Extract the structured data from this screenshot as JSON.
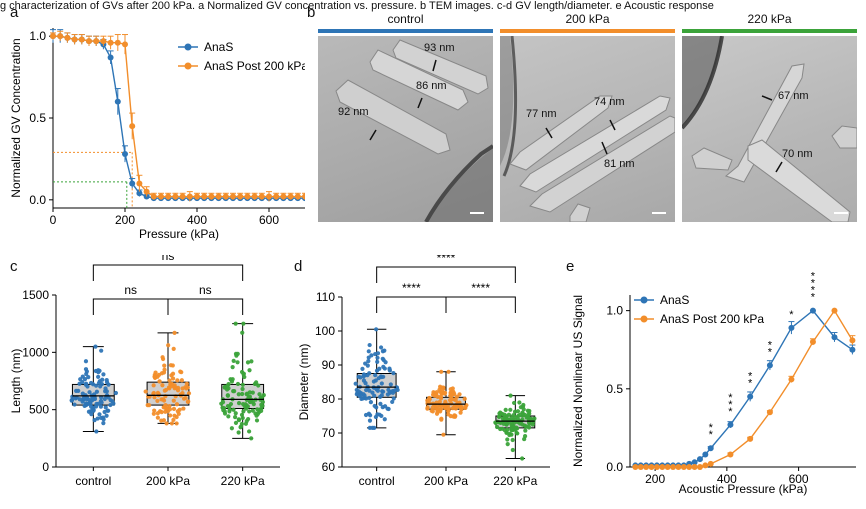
{
  "caption": "g characterization of GVs after 200 kPa. a Normalized GV concentration vs. pressure. b TEM images. c-d GV length/diameter. e Acoustic response",
  "panel_labels": {
    "a": "a",
    "b": "b",
    "c": "c",
    "d": "d",
    "e": "e"
  },
  "tem": {
    "titles": [
      "control",
      "200 kPa",
      "220 kPa"
    ],
    "colors": [
      "#2E75B6",
      "#F28E2B",
      "#3BA33A"
    ],
    "panels": [
      {
        "measures": [
          {
            "label": "93 nm"
          },
          {
            "label": "86 nm"
          },
          {
            "label": "92 nm"
          }
        ]
      },
      {
        "measures": [
          {
            "label": "77 nm"
          },
          {
            "label": "74 nm"
          },
          {
            "label": "81 nm"
          }
        ]
      },
      {
        "measures": [
          {
            "label": "67 nm"
          },
          {
            "label": "70 nm"
          }
        ]
      }
    ]
  },
  "chart_data": [
    {
      "id": "a",
      "type": "line",
      "xlabel": "Pressure (kPa)",
      "ylabel": "Normalized GV Concentration",
      "xlim": [
        0,
        700
      ],
      "ylim": [
        -0.05,
        1.05
      ],
      "xticks": [
        0,
        200,
        400,
        600
      ],
      "yticks": [
        0.0,
        0.5,
        1.0
      ],
      "yticklabels": [
        "0.0",
        "0.5",
        "1.0"
      ],
      "legend": "top-right",
      "series": [
        {
          "name": "AnaS",
          "color": "#2E75B6",
          "x": [
            0,
            20,
            40,
            60,
            80,
            100,
            120,
            140,
            160,
            180,
            200,
            220,
            240,
            260,
            280,
            300,
            320,
            340,
            360,
            380,
            400,
            420,
            440,
            460,
            480,
            500,
            520,
            540,
            560,
            580,
            600,
            620,
            640,
            660,
            680,
            700
          ],
          "y": [
            1.0,
            1.0,
            0.99,
            0.98,
            0.98,
            0.97,
            0.97,
            0.95,
            0.87,
            0.6,
            0.28,
            0.1,
            0.04,
            0.02,
            0.01,
            0.01,
            0.01,
            0.01,
            0.01,
            0.01,
            0.01,
            0.01,
            0.01,
            0.01,
            0.01,
            0.01,
            0.01,
            0.01,
            0.01,
            0.01,
            0.01,
            0.01,
            0.01,
            0.01,
            0.01,
            0.01
          ],
          "err": [
            0.04,
            0.04,
            0.03,
            0.03,
            0.03,
            0.03,
            0.03,
            0.03,
            0.04,
            0.08,
            0.05,
            0.03,
            0.02,
            0.01,
            0.01,
            0.01,
            0.01,
            0.01,
            0.01,
            0.01,
            0.01,
            0.01,
            0.01,
            0.01,
            0.01,
            0.01,
            0.01,
            0.01,
            0.01,
            0.01,
            0.01,
            0.01,
            0.01,
            0.01,
            0.01,
            0.01
          ]
        },
        {
          "name": "AnaS Post 200 kPa",
          "color": "#F28E2B",
          "x": [
            0,
            20,
            40,
            60,
            80,
            100,
            120,
            140,
            160,
            180,
            200,
            220,
            240,
            260,
            280,
            300,
            320,
            340,
            360,
            380,
            400,
            420,
            440,
            460,
            480,
            500,
            520,
            540,
            560,
            580,
            600,
            620,
            640,
            660,
            680,
            700
          ],
          "y": [
            1.0,
            1.0,
            0.99,
            0.98,
            0.98,
            0.97,
            0.97,
            0.97,
            0.96,
            0.96,
            0.95,
            0.45,
            0.1,
            0.05,
            0.02,
            0.02,
            0.02,
            0.02,
            0.02,
            0.02,
            0.02,
            0.02,
            0.02,
            0.02,
            0.02,
            0.02,
            0.02,
            0.02,
            0.02,
            0.02,
            0.02,
            0.02,
            0.02,
            0.02,
            0.02,
            0.02
          ],
          "err": [
            0.02,
            0.03,
            0.03,
            0.03,
            0.03,
            0.03,
            0.03,
            0.03,
            0.04,
            0.05,
            0.06,
            0.08,
            0.05,
            0.03,
            0.02,
            0.02,
            0.02,
            0.02,
            0.02,
            0.03,
            0.02,
            0.02,
            0.02,
            0.02,
            0.02,
            0.02,
            0.02,
            0.02,
            0.02,
            0.02,
            0.03,
            0.02,
            0.02,
            0.02,
            0.02,
            0.02
          ]
        }
      ],
      "reference_lines": [
        {
          "color": "#F28E2B",
          "x": 220,
          "y": 0.29
        },
        {
          "color": "#3BA33A",
          "x": 205,
          "y": 0.11
        }
      ]
    },
    {
      "id": "c",
      "type": "box",
      "ylabel": "Length (nm)",
      "ylim": [
        0,
        1500
      ],
      "yticks": [
        0,
        500,
        1000,
        1500
      ],
      "categories": [
        "control",
        "200  kPa",
        "220 kPa"
      ],
      "colors": [
        "#2E75B6",
        "#F28E2B",
        "#3BA33A"
      ],
      "boxes": [
        {
          "min": 310,
          "q1": 540,
          "median": 620,
          "q3": 720,
          "max": 1050
        },
        {
          "min": 380,
          "q1": 540,
          "median": 625,
          "q3": 740,
          "max": 1170
        },
        {
          "min": 250,
          "q1": 510,
          "median": 590,
          "q3": 720,
          "max": 1250
        }
      ],
      "n_points": 110,
      "significance": [
        {
          "from": 0,
          "to": 1,
          "label": "ns"
        },
        {
          "from": 1,
          "to": 2,
          "label": "ns"
        },
        {
          "from": 0,
          "to": 2,
          "label": "ns"
        }
      ]
    },
    {
      "id": "d",
      "type": "box",
      "ylabel": "Diameter (nm)",
      "ylim": [
        60,
        110
      ],
      "yticks": [
        60,
        70,
        80,
        90,
        100,
        110
      ],
      "categories": [
        "control",
        "200 kPa",
        "220 kPa"
      ],
      "colors": [
        "#2E75B6",
        "#F28E2B",
        "#3BA33A"
      ],
      "boxes": [
        {
          "min": 71.5,
          "q1": 80.5,
          "median": 83.5,
          "q3": 87.5,
          "max": 100.5
        },
        {
          "min": 69.5,
          "q1": 77,
          "median": 78.5,
          "q3": 80.5,
          "max": 88
        },
        {
          "min": 62.5,
          "q1": 71.5,
          "median": 73.5,
          "q3": 75,
          "max": 81
        }
      ],
      "n_points": 110,
      "significance": [
        {
          "from": 0,
          "to": 1,
          "label": "****"
        },
        {
          "from": 1,
          "to": 2,
          "label": "****"
        },
        {
          "from": 0,
          "to": 2,
          "label": "****"
        }
      ]
    },
    {
      "id": "e",
      "type": "line",
      "xlabel": "Acoustic Pressure (kPa)",
      "ylabel": "Normalized Nonlinear US Signal",
      "xlim": [
        130,
        760
      ],
      "ylim": [
        0,
        1.1
      ],
      "xticks": [
        200,
        400,
        600
      ],
      "yticks": [
        0.0,
        0.5,
        1.0
      ],
      "yticklabels": [
        "0.0",
        "0.5",
        "1.0"
      ],
      "legend": "top-left",
      "series": [
        {
          "name": "AnaS",
          "color": "#2E75B6",
          "x": [
            145,
            160,
            175,
            190,
            205,
            220,
            235,
            250,
            265,
            280,
            295,
            310,
            325,
            340,
            355,
            410,
            465,
            520,
            580,
            640,
            700,
            750
          ],
          "y": [
            0.01,
            0.01,
            0.01,
            0.01,
            0.01,
            0.01,
            0.01,
            0.01,
            0.01,
            0.01,
            0.02,
            0.03,
            0.05,
            0.08,
            0.12,
            0.27,
            0.45,
            0.65,
            0.89,
            1.0,
            0.83,
            0.75
          ],
          "err": [
            0,
            0,
            0,
            0,
            0,
            0,
            0,
            0,
            0,
            0,
            0,
            0,
            0,
            0,
            0.01,
            0.02,
            0.03,
            0.03,
            0.04,
            0,
            0.03,
            0.03
          ]
        },
        {
          "name": "AnaS Post 200 kPa",
          "color": "#F28E2B",
          "x": [
            145,
            160,
            175,
            190,
            205,
            220,
            235,
            250,
            265,
            280,
            295,
            310,
            325,
            340,
            355,
            410,
            465,
            520,
            580,
            640,
            700,
            750
          ],
          "y": [
            0,
            0,
            0,
            0,
            0,
            0,
            0,
            0,
            0,
            0,
            0,
            0,
            0,
            0.01,
            0.02,
            0.08,
            0.18,
            0.35,
            0.56,
            0.8,
            1.0,
            0.81
          ],
          "err": [
            0,
            0,
            0,
            0,
            0,
            0,
            0,
            0,
            0,
            0,
            0,
            0,
            0,
            0,
            0,
            0.01,
            0.01,
            0.01,
            0.02,
            0.02,
            0,
            0.03
          ]
        }
      ],
      "annotations": [
        {
          "x": 355,
          "y": 0.12,
          "label": "**"
        },
        {
          "x": 410,
          "y": 0.27,
          "label": "***"
        },
        {
          "x": 465,
          "y": 0.45,
          "label": "**"
        },
        {
          "x": 520,
          "y": 0.65,
          "label": "**"
        },
        {
          "x": 580,
          "y": 0.89,
          "label": "*"
        },
        {
          "x": 640,
          "y": 1.0,
          "label": "****"
        }
      ]
    }
  ]
}
